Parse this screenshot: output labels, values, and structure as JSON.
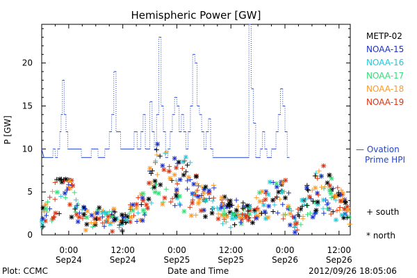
{
  "chart_data": {
    "type": "scatter",
    "title": "Hemispheric Power [GW]",
    "xlabel": "Date and Time",
    "ylabel": "P [GW]",
    "ylim": [
      0,
      24.5
    ],
    "y_ticks": [
      0,
      5,
      10,
      15,
      20
    ],
    "x_ticks": [
      {
        "t": 6,
        "time": "0:00",
        "date": "Sep24"
      },
      {
        "t": 18,
        "time": "12:00",
        "date": "Sep24"
      },
      {
        "t": 30,
        "time": "0:00",
        "date": "Sep25"
      },
      {
        "t": 42,
        "time": "12:00",
        "date": "Sep25"
      },
      {
        "t": 54,
        "time": "0:00",
        "date": "Sep26"
      },
      {
        "t": 66,
        "time": "12:00",
        "date": "Sep26"
      }
    ],
    "x_unit": "hours since 2012-09-23 18:00",
    "xlim": [
      0,
      68.5
    ],
    "grid": false,
    "ovation_color": "#2244cc",
    "ovation_step": [
      [
        0,
        10
      ],
      [
        0.5,
        9
      ],
      [
        2.5,
        9
      ],
      [
        2.5,
        10
      ],
      [
        3,
        10
      ],
      [
        3,
        9
      ],
      [
        3.5,
        9
      ],
      [
        3.5,
        10
      ],
      [
        4,
        10
      ],
      [
        4,
        12
      ],
      [
        4.3,
        12
      ],
      [
        4.3,
        14
      ],
      [
        4.6,
        14
      ],
      [
        4.6,
        18
      ],
      [
        5,
        18
      ],
      [
        5,
        14
      ],
      [
        5.4,
        14
      ],
      [
        5.4,
        12
      ],
      [
        5.8,
        12
      ],
      [
        5.8,
        10
      ],
      [
        8.8,
        10
      ],
      [
        8.8,
        9
      ],
      [
        11,
        9
      ],
      [
        11,
        10
      ],
      [
        12.5,
        10
      ],
      [
        12.5,
        9
      ],
      [
        14,
        9
      ],
      [
        14,
        10
      ],
      [
        15,
        10
      ],
      [
        15,
        12
      ],
      [
        15.5,
        12
      ],
      [
        15.5,
        14
      ],
      [
        16,
        14
      ],
      [
        16,
        19
      ],
      [
        16.5,
        19
      ],
      [
        16.5,
        12
      ],
      [
        17.5,
        12
      ],
      [
        17.5,
        10
      ],
      [
        20.5,
        10
      ],
      [
        20.5,
        12
      ],
      [
        21.2,
        12
      ],
      [
        21.2,
        10
      ],
      [
        22,
        10
      ],
      [
        22,
        12
      ],
      [
        22.5,
        12
      ],
      [
        22.5,
        14
      ],
      [
        23,
        14
      ],
      [
        23,
        10
      ],
      [
        24,
        10
      ],
      [
        24,
        15.5
      ],
      [
        24.5,
        15.5
      ],
      [
        24.5,
        12
      ],
      [
        25,
        12
      ],
      [
        25,
        10
      ],
      [
        25.5,
        10
      ],
      [
        25.5,
        14
      ],
      [
        26,
        14
      ],
      [
        26,
        23
      ],
      [
        26.5,
        23
      ],
      [
        26.5,
        15
      ],
      [
        27,
        15
      ],
      [
        27,
        12
      ],
      [
        27.5,
        12
      ],
      [
        27.5,
        9
      ],
      [
        28,
        9
      ],
      [
        28,
        10
      ],
      [
        28.5,
        10
      ],
      [
        28.5,
        12
      ],
      [
        29,
        12
      ],
      [
        29,
        14
      ],
      [
        29.5,
        14
      ],
      [
        29.5,
        16
      ],
      [
        30,
        16
      ],
      [
        30,
        15
      ],
      [
        30.5,
        15
      ],
      [
        30.5,
        12
      ],
      [
        31,
        12
      ],
      [
        31,
        14
      ],
      [
        31.5,
        14
      ],
      [
        31.5,
        12
      ],
      [
        32,
        12
      ],
      [
        32,
        10
      ],
      [
        32.5,
        10
      ],
      [
        32.5,
        12
      ],
      [
        33,
        12
      ],
      [
        33,
        15
      ],
      [
        33.5,
        15
      ],
      [
        33.5,
        21
      ],
      [
        34,
        21
      ],
      [
        34,
        20
      ],
      [
        34.5,
        20
      ],
      [
        34.5,
        15
      ],
      [
        35,
        15
      ],
      [
        35,
        14
      ],
      [
        35.5,
        14
      ],
      [
        35.5,
        12
      ],
      [
        36,
        12
      ],
      [
        36,
        10
      ],
      [
        36.5,
        10
      ],
      [
        36.5,
        12
      ],
      [
        37,
        12
      ],
      [
        37,
        13.5
      ],
      [
        37.5,
        13.5
      ],
      [
        37.5,
        10
      ],
      [
        38,
        10
      ],
      [
        38,
        9
      ],
      [
        46,
        9
      ],
      [
        46,
        24.5
      ],
      [
        46.5,
        24.5
      ],
      [
        46.5,
        17
      ],
      [
        47,
        17
      ],
      [
        47,
        13
      ],
      [
        47.5,
        13
      ],
      [
        47.5,
        9
      ],
      [
        48.5,
        9
      ],
      [
        48.5,
        10
      ],
      [
        49,
        10
      ],
      [
        49,
        12
      ],
      [
        49.5,
        12
      ],
      [
        49.5,
        10
      ],
      [
        50,
        10
      ],
      [
        50,
        9
      ],
      [
        51,
        9
      ],
      [
        51,
        10
      ],
      [
        52,
        10
      ],
      [
        52,
        12
      ],
      [
        52.5,
        12
      ],
      [
        52.5,
        14
      ],
      [
        53,
        14
      ],
      [
        53,
        17
      ],
      [
        53.5,
        17
      ],
      [
        53.5,
        15
      ],
      [
        54,
        15
      ],
      [
        54,
        12
      ],
      [
        54.5,
        12
      ],
      [
        54.5,
        9
      ],
      [
        55,
        9
      ]
    ],
    "series": [
      {
        "name": "METP-02",
        "color": "#000000"
      },
      {
        "name": "NOAA-15",
        "color": "#1a2ecc"
      },
      {
        "name": "NOAA-16",
        "color": "#22c8d8"
      },
      {
        "name": "NOAA-17",
        "color": "#33dd77"
      },
      {
        "name": "NOAA-18",
        "color": "#ff9922"
      },
      {
        "name": "NOAA-19",
        "color": "#dd3311"
      }
    ]
  },
  "legend_extra": {
    "ovation_line1": "— Ovation",
    "ovation_line2": "Prime HPI",
    "south": "+ south",
    "north": "* north"
  },
  "footer": {
    "left": "Plot: CCMC",
    "center": "Date and Time",
    "right": "2012/09/26 18:05:06"
  }
}
